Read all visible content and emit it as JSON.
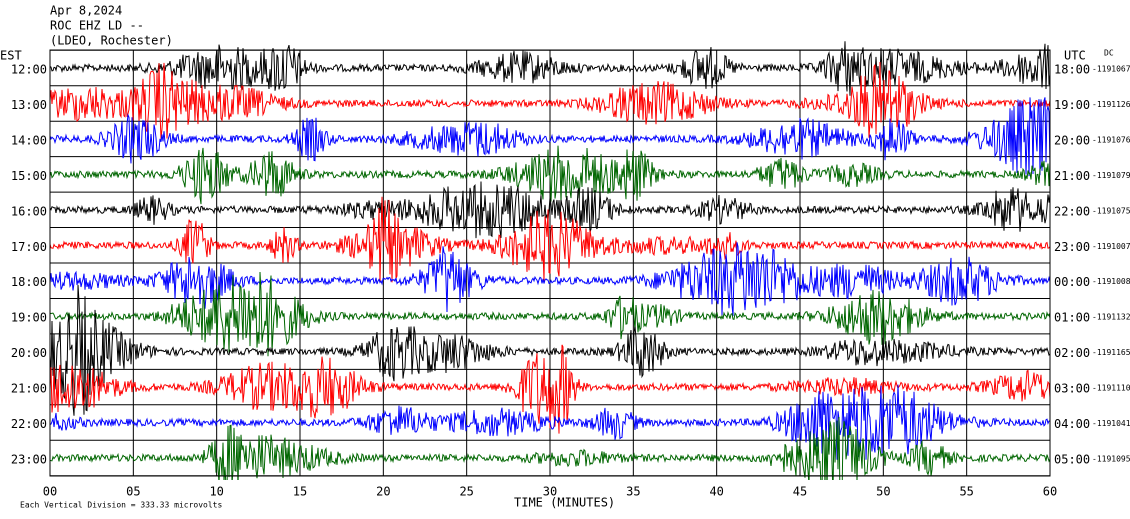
{
  "header": {
    "date": "Apr 8,2024",
    "station": "ROC EHZ LD --",
    "network": "(LDEO, Rochester)"
  },
  "left_zone": "EST",
  "right_zone": "UTC",
  "dc_label": "DC",
  "rows": [
    {
      "est": "12:00",
      "utc": "18:00",
      "dc": "-1191067"
    },
    {
      "est": "13:00",
      "utc": "19:00",
      "dc": "-1191126"
    },
    {
      "est": "14:00",
      "utc": "20:00",
      "dc": "-1191076"
    },
    {
      "est": "15:00",
      "utc": "21:00",
      "dc": "-1191079"
    },
    {
      "est": "16:00",
      "utc": "22:00",
      "dc": "-1191075"
    },
    {
      "est": "17:00",
      "utc": "23:00",
      "dc": "-1191007"
    },
    {
      "est": "18:00",
      "utc": "00:00",
      "dc": "-1191008"
    },
    {
      "est": "19:00",
      "utc": "01:00",
      "dc": "-1191132"
    },
    {
      "est": "20:00",
      "utc": "02:00",
      "dc": "-1191165"
    },
    {
      "est": "21:00",
      "utc": "03:00",
      "dc": "-1191110"
    },
    {
      "est": "22:00",
      "utc": "04:00",
      "dc": "-1191041"
    },
    {
      "est": "23:00",
      "utc": "05:00",
      "dc": "-1191095"
    }
  ],
  "x_axis": {
    "ticks": [
      "00",
      "05",
      "10",
      "15",
      "20",
      "25",
      "30",
      "35",
      "40",
      "45",
      "50",
      "55",
      "60"
    ],
    "label": "TIME (MINUTES)"
  },
  "footer": "Each Vertical Division = 333.33 microvolts"
}
